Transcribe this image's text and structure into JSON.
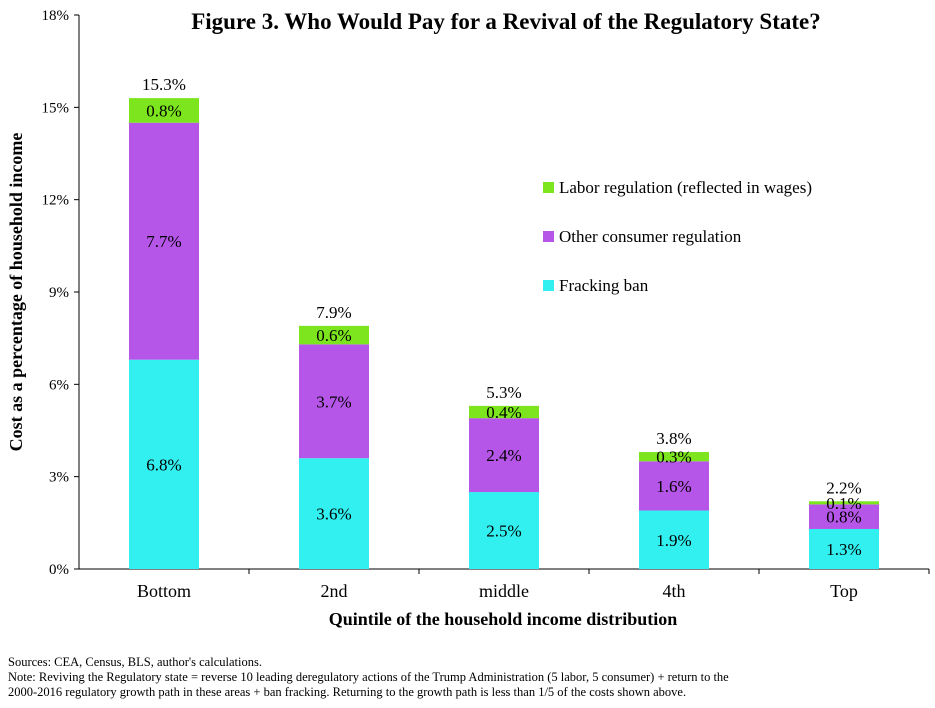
{
  "chart_data": {
    "type": "bar",
    "stacked": true,
    "title": "Figure 3.  Who Would Pay for a Revival of the Regulatory State?",
    "xlabel": "Quintile of the household income distribution",
    "ylabel": "Cost as a percentage of household income",
    "ylim": [
      0,
      18
    ],
    "yticks": [
      0,
      3,
      6,
      9,
      12,
      15,
      18
    ],
    "ytick_labels": [
      "0%",
      "3%",
      "6%",
      "9%",
      "12%",
      "15%",
      "18%"
    ],
    "categories": [
      "Bottom",
      "2nd",
      "middle",
      "4th",
      "Top"
    ],
    "series": [
      {
        "name": "Fracking ban",
        "values": [
          6.8,
          3.6,
          2.5,
          1.9,
          1.3
        ],
        "labels": [
          "6.8%",
          "3.6%",
          "2.5%",
          "1.9%",
          "1.3%"
        ],
        "color": "#33f0f0"
      },
      {
        "name": "Other consumer regulation",
        "values": [
          7.7,
          3.7,
          2.4,
          1.6,
          0.8
        ],
        "labels": [
          "7.7%",
          "3.7%",
          "2.4%",
          "1.6%",
          "0.8%"
        ],
        "color": "#b556e8"
      },
      {
        "name": "Labor regulation (reflected in wages)",
        "values": [
          0.8,
          0.6,
          0.4,
          0.3,
          0.1
        ],
        "labels": [
          "0.8%",
          "0.6%",
          "0.4%",
          "0.3%",
          "0.1%"
        ],
        "color": "#7ce51e"
      }
    ],
    "totals": [
      15.3,
      7.9,
      5.3,
      3.8,
      2.2
    ],
    "total_labels": [
      "15.3%",
      "7.9%",
      "5.3%",
      "3.8%",
      "2.2%"
    ],
    "legend": {
      "placement": "right",
      "entries": [
        "Labor regulation (reflected in wages)",
        "Other consumer regulation",
        "Fracking ban"
      ]
    },
    "grid": false
  },
  "notes": {
    "sources": "Sources: CEA, Census, BLS, author's calculations.",
    "note_line1": "Note: Reviving the Regulatory state = reverse 10 leading deregulatory actions of the Trump Administration (5 labor, 5 consumer) + return to the",
    "note_line2": "2000-2016 regulatory growth path in these areas + ban fracking.  Returning to the growth path is less than 1/5 of the costs shown above."
  }
}
